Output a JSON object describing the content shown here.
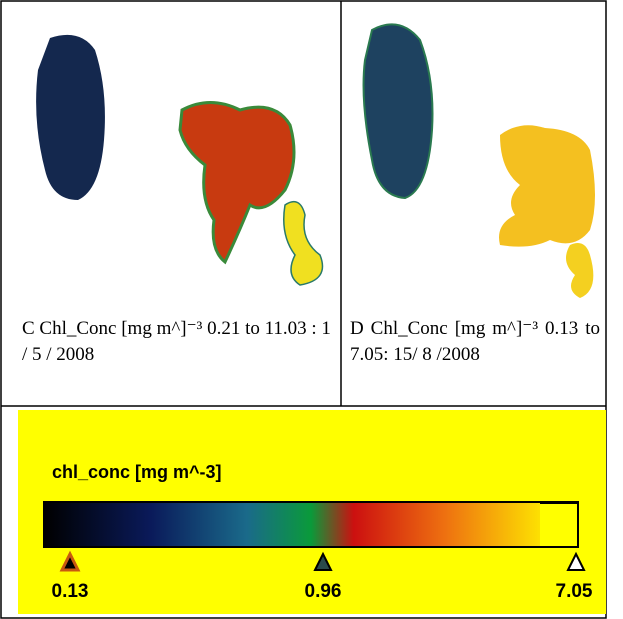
{
  "panels": [
    {
      "caption": "C Chl_Conc [mg m^]⁻³ 0.21 to 11.03 : 1 / 5 / 2008"
    },
    {
      "caption": "D Chl_Conc [mg m^]⁻³ 0.13 to 7.05: 15/ 8 /2008"
    }
  ],
  "colorbar": {
    "title": "chl_conc [mg m^-3]",
    "labels": [
      "0.13",
      "0.96",
      "7.05"
    ]
  }
}
